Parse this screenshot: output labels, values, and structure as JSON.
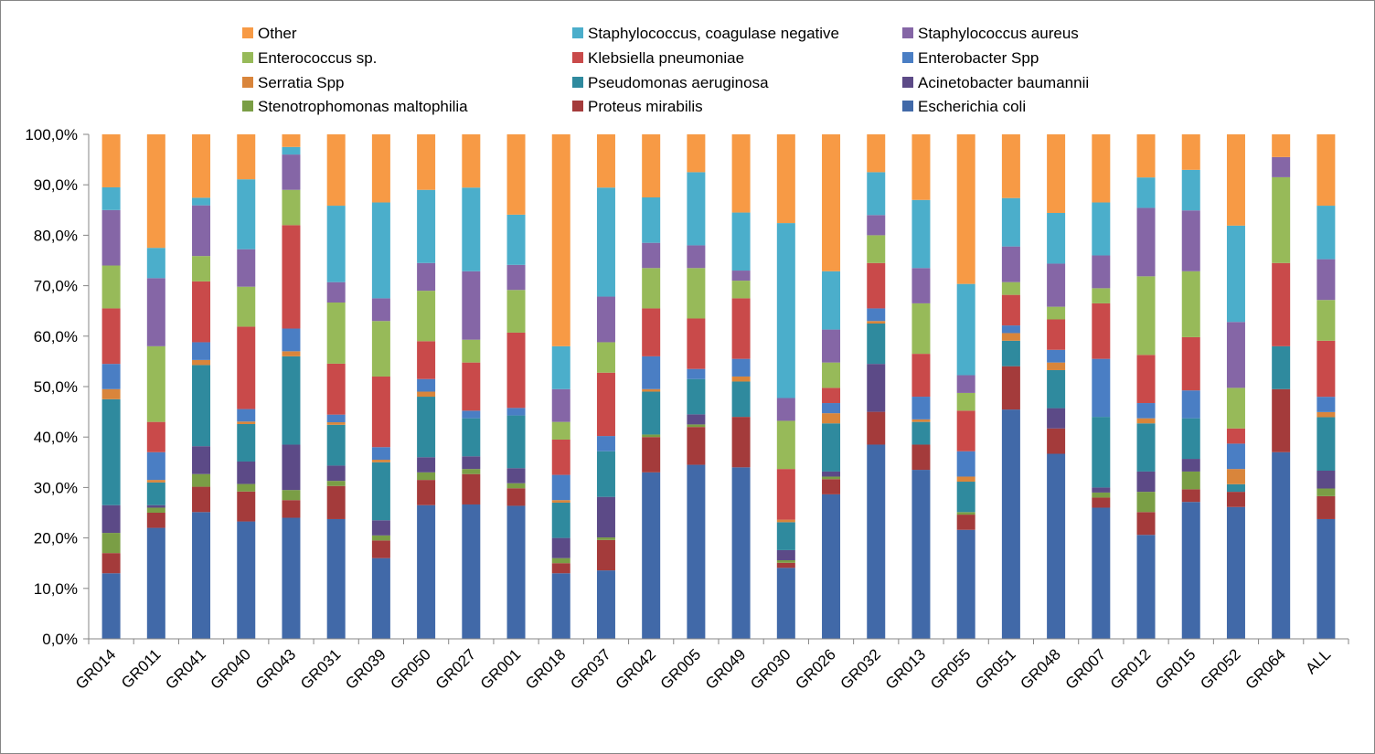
{
  "chart_data": {
    "type": "bar",
    "stacked": true,
    "percent": true,
    "ylim": [
      0,
      100
    ],
    "ytick_labels": [
      "0,0%",
      "10,0%",
      "20,0%",
      "30,0%",
      "40,0%",
      "50,0%",
      "60,0%",
      "70,0%",
      "80,0%",
      "90,0%",
      "100,0%"
    ],
    "grid": false,
    "legend_position": "top",
    "categories": [
      "GR014",
      "GR011",
      "GR041",
      "GR040",
      "GR043",
      "GR031",
      "GR039",
      "GR050",
      "GR027",
      "GR001",
      "GR018",
      "GR037",
      "GR042",
      "GR005",
      "GR049",
      "GR030",
      "GR026",
      "GR032",
      "GR013",
      "GR055",
      "GR051",
      "GR048",
      "GR007",
      "GR012",
      "GR015",
      "GR052",
      "GR064",
      "ALL"
    ],
    "legend_order": [
      "Other",
      "Staphylococcus, coagulase negative",
      "Staphylococcus aureus",
      "Enterococcus sp.",
      "Klebsiella pneumoniae",
      "Enterobacter Spp",
      "Serratia Spp",
      "Pseudomonas aeruginosa",
      "Acinetobacter baumannii",
      "Stenotrophomonas maltophilia",
      "Proteus mirabilis",
      "Escherichia coli"
    ],
    "series": [
      {
        "name": "Escherichia coli",
        "color": "#4169A8",
        "values": [
          13,
          22,
          25,
          23.5,
          24,
          23.5,
          16,
          26.5,
          26.5,
          26.5,
          13,
          13.5,
          33,
          34.5,
          34,
          14,
          28.5,
          38.5,
          33.5,
          21.5,
          45,
          36.5,
          26,
          20.5,
          27,
          26,
          37,
          23.5
        ]
      },
      {
        "name": "Proteus mirabilis",
        "color": "#A43B3B",
        "values": [
          4,
          3,
          5,
          6,
          3.5,
          6.5,
          3.5,
          5,
          6,
          3.5,
          2,
          6,
          7,
          7.5,
          10,
          1,
          3,
          6.5,
          5,
          3,
          8.5,
          5,
          2,
          4.5,
          2.5,
          3,
          12.5,
          4.5
        ]
      },
      {
        "name": "Stenotrophomonas maltophilia",
        "color": "#7A9E45",
        "values": [
          4,
          1,
          2.5,
          1.5,
          2,
          1,
          1,
          1.5,
          1,
          1,
          1,
          0.5,
          0.5,
          0.5,
          0,
          0.5,
          0.5,
          0,
          0,
          0.5,
          0,
          0,
          1,
          4,
          3.5,
          0,
          0,
          1.5
        ]
      },
      {
        "name": "Acinetobacter baumannii",
        "color": "#5C4A87",
        "values": [
          5.5,
          0.5,
          5.5,
          4.5,
          9,
          3,
          3,
          3,
          2.5,
          3,
          4,
          8,
          0,
          2,
          0,
          2,
          1,
          9.5,
          0,
          0,
          0,
          4,
          1,
          4,
          2.5,
          0,
          0,
          3.5
        ]
      },
      {
        "name": "Pseudomonas aeruginosa",
        "color": "#2F8A9E",
        "values": [
          21,
          4.5,
          16,
          7.5,
          17.5,
          8,
          11.5,
          12,
          7.5,
          10.5,
          7,
          9,
          8.5,
          7,
          7,
          5.5,
          9.5,
          8,
          4.5,
          6,
          5,
          7.5,
          14,
          9.5,
          8,
          1.5,
          8.5,
          10.5
        ]
      },
      {
        "name": "Serratia Spp",
        "color": "#D9853B",
        "values": [
          2,
          0.5,
          1,
          0.5,
          1,
          0.5,
          0.5,
          1,
          0,
          0,
          0.5,
          0,
          0.5,
          0,
          1,
          0.5,
          2,
          0.5,
          0.5,
          1,
          1.5,
          1.5,
          0,
          1,
          0,
          3,
          0,
          1
        ]
      },
      {
        "name": "Enterobacter Spp",
        "color": "#4A7EC4",
        "values": [
          5,
          5.5,
          3.5,
          2.5,
          4.5,
          1.5,
          2.5,
          2.5,
          1.5,
          1.5,
          5,
          3,
          6.5,
          2,
          3.5,
          0,
          2,
          2.5,
          4.5,
          5,
          1.5,
          2.5,
          11.5,
          3,
          5.5,
          5,
          0,
          3
        ]
      },
      {
        "name": "Klebsiella pneumoniae",
        "color": "#C94A4A",
        "values": [
          11,
          6,
          12,
          16.5,
          20.5,
          10,
          14,
          7.5,
          9.5,
          15,
          7,
          12.5,
          9.5,
          10,
          12,
          10,
          3,
          9,
          8.5,
          8,
          6,
          6,
          11,
          9.5,
          10.5,
          3,
          16.5,
          11
        ]
      },
      {
        "name": "Enterococcus sp.",
        "color": "#97BA59",
        "values": [
          8.5,
          15,
          5,
          8,
          7,
          12,
          11,
          10,
          4.5,
          8.5,
          3.5,
          6,
          8,
          10,
          3.5,
          9.5,
          5,
          5.5,
          10,
          3.5,
          2.5,
          2.5,
          3,
          15.5,
          13,
          8,
          17,
          8
        ]
      },
      {
        "name": "Staphylococcus aureus",
        "color": "#8566A6",
        "values": [
          11,
          13.5,
          10,
          7.5,
          7,
          4,
          4.5,
          5.5,
          13.5,
          5,
          6.5,
          9,
          5,
          4.5,
          2,
          4.5,
          6.5,
          4,
          7,
          3.5,
          7,
          8.5,
          6.5,
          13.5,
          12,
          13,
          4,
          8
        ]
      },
      {
        "name": "Staphylococcus, coagulase negative",
        "color": "#4BAECB",
        "values": [
          4.5,
          6,
          1.5,
          14,
          1.5,
          15,
          19,
          14.5,
          16.5,
          10,
          8.5,
          21.5,
          9,
          14.5,
          11.5,
          34.5,
          11.5,
          8.5,
          13.5,
          18,
          9.5,
          10,
          10.5,
          6,
          8,
          19,
          0,
          10.5
        ]
      },
      {
        "name": "Other",
        "color": "#F79A45",
        "values": [
          10.5,
          22.5,
          12.5,
          9,
          2.5,
          14,
          13.5,
          11,
          10.5,
          16,
          42,
          10.5,
          12.5,
          7.5,
          15.5,
          17.5,
          27,
          7.5,
          13,
          29.5,
          12.5,
          15.5,
          13.5,
          8.5,
          7,
          18,
          4.5,
          14
        ]
      }
    ]
  }
}
